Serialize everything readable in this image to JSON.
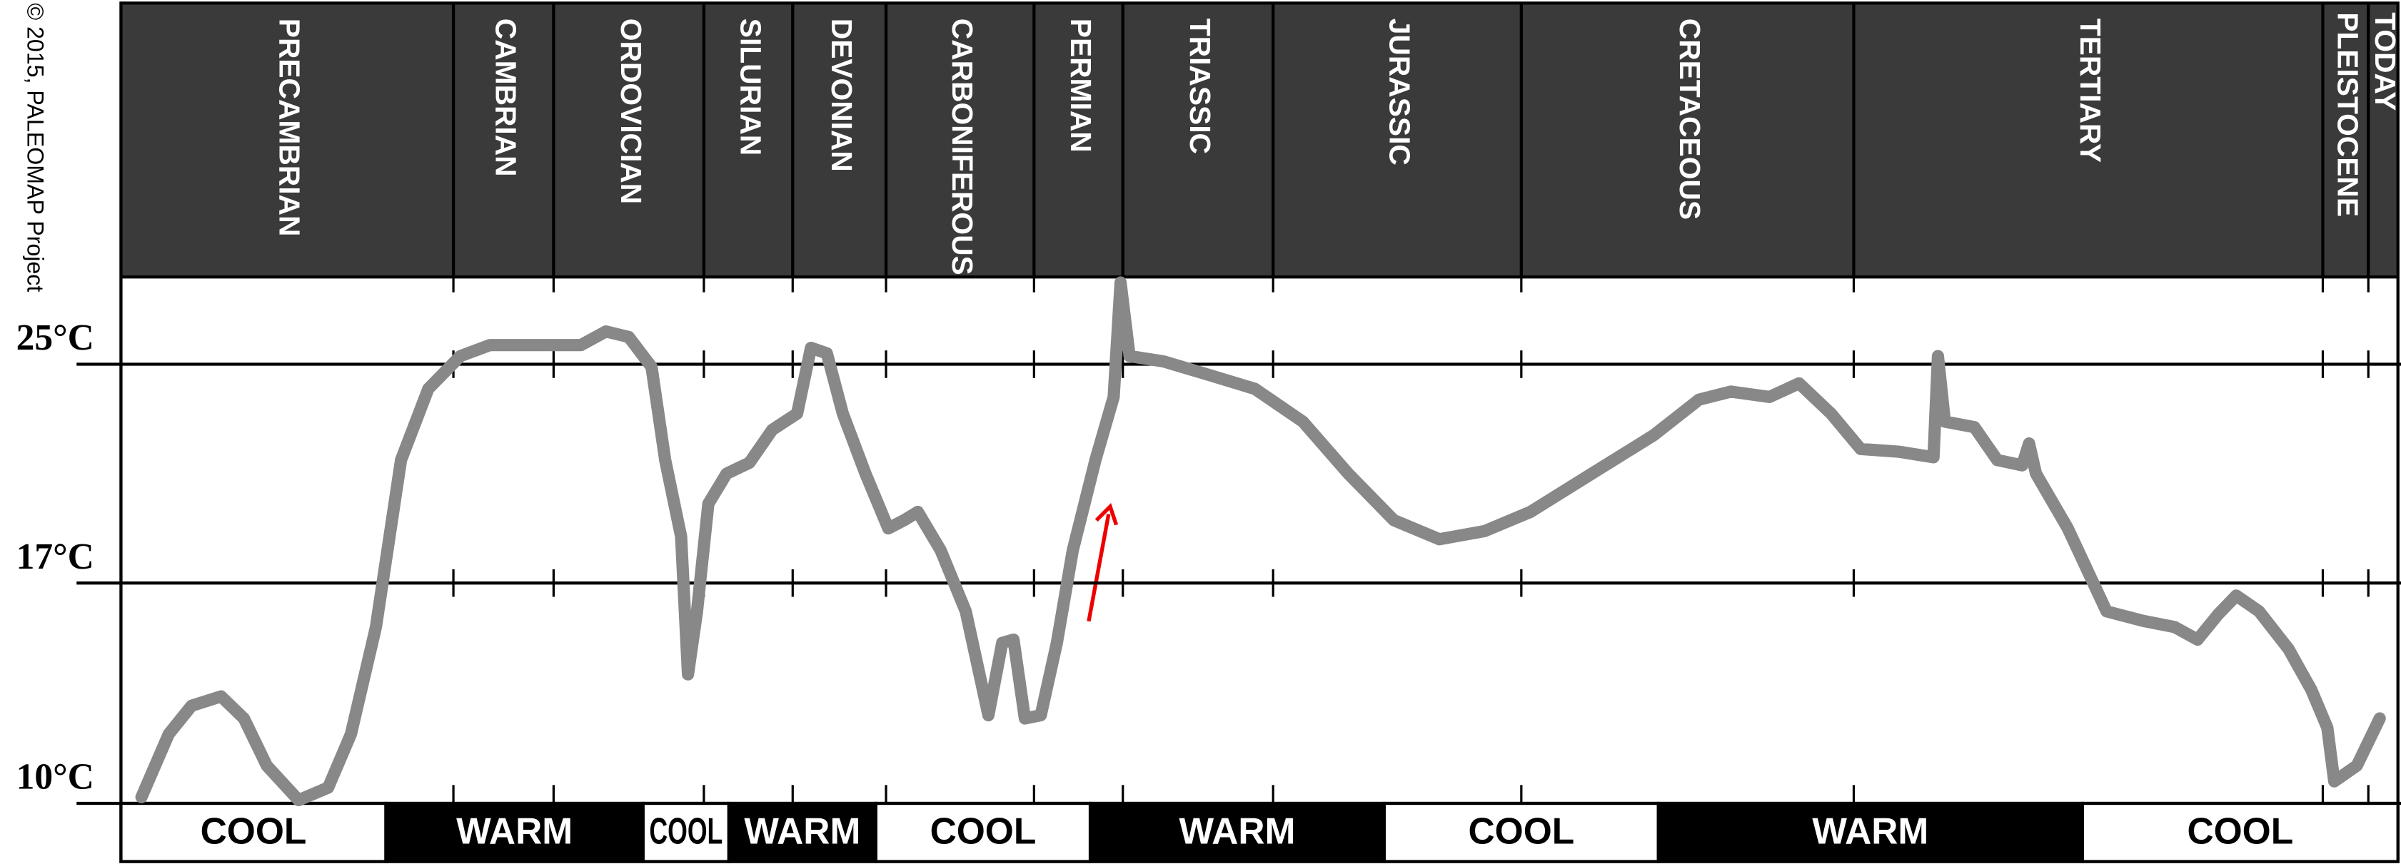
{
  "chart_data": {
    "type": "line",
    "credit": "© 2015, PALEOMAP Project",
    "periods": [
      "PRECAMBRIAN",
      "CAMBRIAN",
      "ORDOVICIAN",
      "SILURIAN",
      "DEVONIAN",
      "CARBONIFEROUS",
      "PERMIAN",
      "TRIASSIC",
      "JURASSIC",
      "CRETACEOUS",
      "TERTIARY",
      "PLEISTOCENE",
      "TODAY"
    ],
    "climate_bands": [
      "COOL",
      "WARM",
      "COOL",
      "WARM",
      "COOL",
      "WARM",
      "COOL",
      "WARM",
      "COOL"
    ],
    "x": [
      0.9,
      2.1,
      3.1,
      4.4,
      5.4,
      6.4,
      7.8,
      9.1,
      10.1,
      11.2,
      12.3,
      13.5,
      14.9,
      16.2,
      18.2,
      20.2,
      21.3,
      22.3,
      23.3,
      23.9,
      24.6,
      24.9,
      25.3,
      25.8,
      26.6,
      27.6,
      28.6,
      29.7,
      30.3,
      31.0,
      31.7,
      32.7,
      33.7,
      34.4,
      35.0,
      36.0,
      37.1,
      38.1,
      38.7,
      39.2,
      39.7,
      40.4,
      41.1,
      41.8,
      42.8,
      43.6,
      43.9,
      44.3,
      45.8,
      47.8,
      49.8,
      51.9,
      53.9,
      55.9,
      57.9,
      59.9,
      61.9,
      64.6,
      67.3,
      69.3,
      70.7,
      72.4,
      73.7,
      75.1,
      76.4,
      78.1,
      79.6,
      79.8,
      80.1,
      81.4,
      82.4,
      83.5,
      83.8,
      84.1,
      85.5,
      87.2,
      88.8,
      90.2,
      91.2,
      92.1,
      92.9,
      93.9,
      95.2,
      96.2,
      96.9,
      97.2,
      98.2,
      99.2
    ],
    "values": [
      10.2,
      12.2,
      13.1,
      13.4,
      12.7,
      11.2,
      10.1,
      10.5,
      12.2,
      15.6,
      21.5,
      24.1,
      25.3,
      25.7,
      25.7,
      25.7,
      26.2,
      26.0,
      24.9,
      21.5,
      18.7,
      14.1,
      16.1,
      19.9,
      21.0,
      21.4,
      22.6,
      23.2,
      25.6,
      25.4,
      23.2,
      21.0,
      19.0,
      19.3,
      19.6,
      18.2,
      16.1,
      12.8,
      15.1,
      15.2,
      12.7,
      12.8,
      15.1,
      18.2,
      21.5,
      23.8,
      28.0,
      25.3,
      25.1,
      24.6,
      24.1,
      22.9,
      21.0,
      19.3,
      18.6,
      18.9,
      19.6,
      21.0,
      22.4,
      23.7,
      24.0,
      23.8,
      24.3,
      23.2,
      21.9,
      21.8,
      21.6,
      25.3,
      22.9,
      22.7,
      21.5,
      21.3,
      22.1,
      21.0,
      19.0,
      16.1,
      15.8,
      15.6,
      15.2,
      16.0,
      16.6,
      16.1,
      14.9,
      13.6,
      12.4,
      10.7,
      11.2,
      12.7
    ],
    "color": "#888888",
    "xlim": [
      0,
      100
    ],
    "ylim": [
      10,
      28.2
    ],
    "yticks": [
      {
        "value": 10,
        "label": "10°C"
      },
      {
        "value": 17,
        "label": "17°C"
      },
      {
        "value": 25,
        "label": "25°C"
      }
    ],
    "grid": true
  }
}
